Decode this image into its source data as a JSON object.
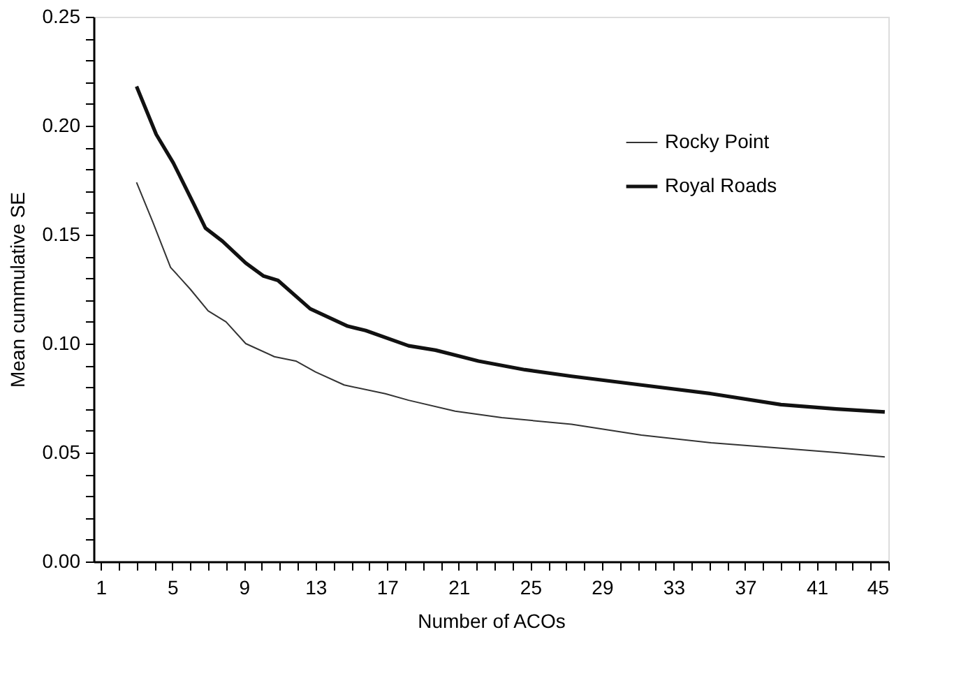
{
  "chart_data": {
    "type": "line",
    "xlabel": "Number of ACOs",
    "ylabel": "Mean cummulative SE",
    "xlim": [
      0.6,
      45
    ],
    "ylim": [
      0,
      0.25
    ],
    "xticks": [
      {
        "value": 1,
        "label": "1"
      },
      {
        "value": 2,
        "label": null
      },
      {
        "value": 3,
        "label": null
      },
      {
        "value": 4,
        "label": null
      },
      {
        "value": 5,
        "label": "5"
      },
      {
        "value": 6,
        "label": null
      },
      {
        "value": 7,
        "label": null
      },
      {
        "value": 8,
        "label": null
      },
      {
        "value": 9,
        "label": "9"
      },
      {
        "value": 10,
        "label": null
      },
      {
        "value": 11,
        "label": null
      },
      {
        "value": 12,
        "label": null
      },
      {
        "value": 13,
        "label": "13"
      },
      {
        "value": 14,
        "label": null
      },
      {
        "value": 15,
        "label": null
      },
      {
        "value": 16,
        "label": null
      },
      {
        "value": 17,
        "label": "17"
      },
      {
        "value": 18,
        "label": null
      },
      {
        "value": 19,
        "label": null
      },
      {
        "value": 20,
        "label": null
      },
      {
        "value": 21,
        "label": "21"
      },
      {
        "value": 22,
        "label": null
      },
      {
        "value": 23,
        "label": null
      },
      {
        "value": 24,
        "label": null
      },
      {
        "value": 25,
        "label": "25"
      },
      {
        "value": 26,
        "label": null
      },
      {
        "value": 27,
        "label": null
      },
      {
        "value": 28,
        "label": null
      },
      {
        "value": 29,
        "label": "29"
      },
      {
        "value": 30,
        "label": null
      },
      {
        "value": 31,
        "label": null
      },
      {
        "value": 32,
        "label": null
      },
      {
        "value": 33,
        "label": "33"
      },
      {
        "value": 34,
        "label": null
      },
      {
        "value": 35,
        "label": null
      },
      {
        "value": 36,
        "label": null
      },
      {
        "value": 37,
        "label": "37"
      },
      {
        "value": 38,
        "label": null
      },
      {
        "value": 39,
        "label": null
      },
      {
        "value": 40,
        "label": null
      },
      {
        "value": 41,
        "label": "41"
      },
      {
        "value": 42,
        "label": null
      },
      {
        "value": 43,
        "label": null
      },
      {
        "value": 44,
        "label": null
      },
      {
        "value": 45,
        "label": "45"
      }
    ],
    "yticks": [
      {
        "value": 0,
        "label": "0.00"
      },
      {
        "value": 0.01,
        "label": null
      },
      {
        "value": 0.02,
        "label": null
      },
      {
        "value": 0.03,
        "label": null
      },
      {
        "value": 0.04,
        "label": null
      },
      {
        "value": 0.05,
        "label": "0.05"
      },
      {
        "value": 0.06,
        "label": null
      },
      {
        "value": 0.07,
        "label": null
      },
      {
        "value": 0.08,
        "label": null
      },
      {
        "value": 0.09,
        "label": null
      },
      {
        "value": 0.1,
        "label": "0.10"
      },
      {
        "value": 0.11,
        "label": null
      },
      {
        "value": 0.12,
        "label": null
      },
      {
        "value": 0.13,
        "label": null
      },
      {
        "value": 0.14,
        "label": null
      },
      {
        "value": 0.15,
        "label": "0.15"
      },
      {
        "value": 0.16,
        "label": null
      },
      {
        "value": 0.17,
        "label": null
      },
      {
        "value": 0.18,
        "label": null
      },
      {
        "value": 0.19,
        "label": null
      },
      {
        "value": 0.2,
        "label": "0.20"
      },
      {
        "value": 0.21,
        "label": null
      },
      {
        "value": 0.22,
        "label": null
      },
      {
        "value": 0.23,
        "label": null
      },
      {
        "value": 0.24,
        "label": null
      },
      {
        "value": 0.25,
        "label": "0.25"
      }
    ],
    "grid": false,
    "legend": "top right",
    "marker": "none",
    "line_style": "solid",
    "series": [
      {
        "name": "Rocky Point",
        "color": "#333333",
        "x": [
          3.0,
          3.9,
          4.9,
          6.0,
          7.0,
          8.0,
          9.1,
          10.7,
          11.9,
          13.0,
          14.6,
          16.9,
          18.2,
          20.8,
          23.4,
          27.3,
          31.2,
          35.1,
          39.0,
          42.1,
          44.8
        ],
        "values": [
          0.174,
          0.156,
          0.135,
          0.125,
          0.115,
          0.11,
          0.1,
          0.094,
          0.092,
          0.087,
          0.081,
          0.077,
          0.074,
          0.069,
          0.066,
          0.063,
          0.058,
          0.0545,
          0.052,
          0.05,
          0.048
        ]
      },
      {
        "name": "Royal Roads",
        "color": "#111111",
        "x": [
          3.0,
          4.1,
          5.05,
          6.2,
          6.85,
          7.8,
          9.1,
          10.1,
          10.9,
          12.7,
          14.8,
          15.8,
          18.2,
          19.7,
          22.1,
          24.7,
          27.3,
          31.2,
          35.1,
          39.0,
          42.1,
          44.8
        ],
        "values": [
          0.218,
          0.196,
          0.183,
          0.164,
          0.153,
          0.147,
          0.137,
          0.131,
          0.129,
          0.116,
          0.108,
          0.106,
          0.099,
          0.097,
          0.092,
          0.088,
          0.085,
          0.081,
          0.077,
          0.072,
          0.07,
          0.0686
        ]
      }
    ]
  }
}
